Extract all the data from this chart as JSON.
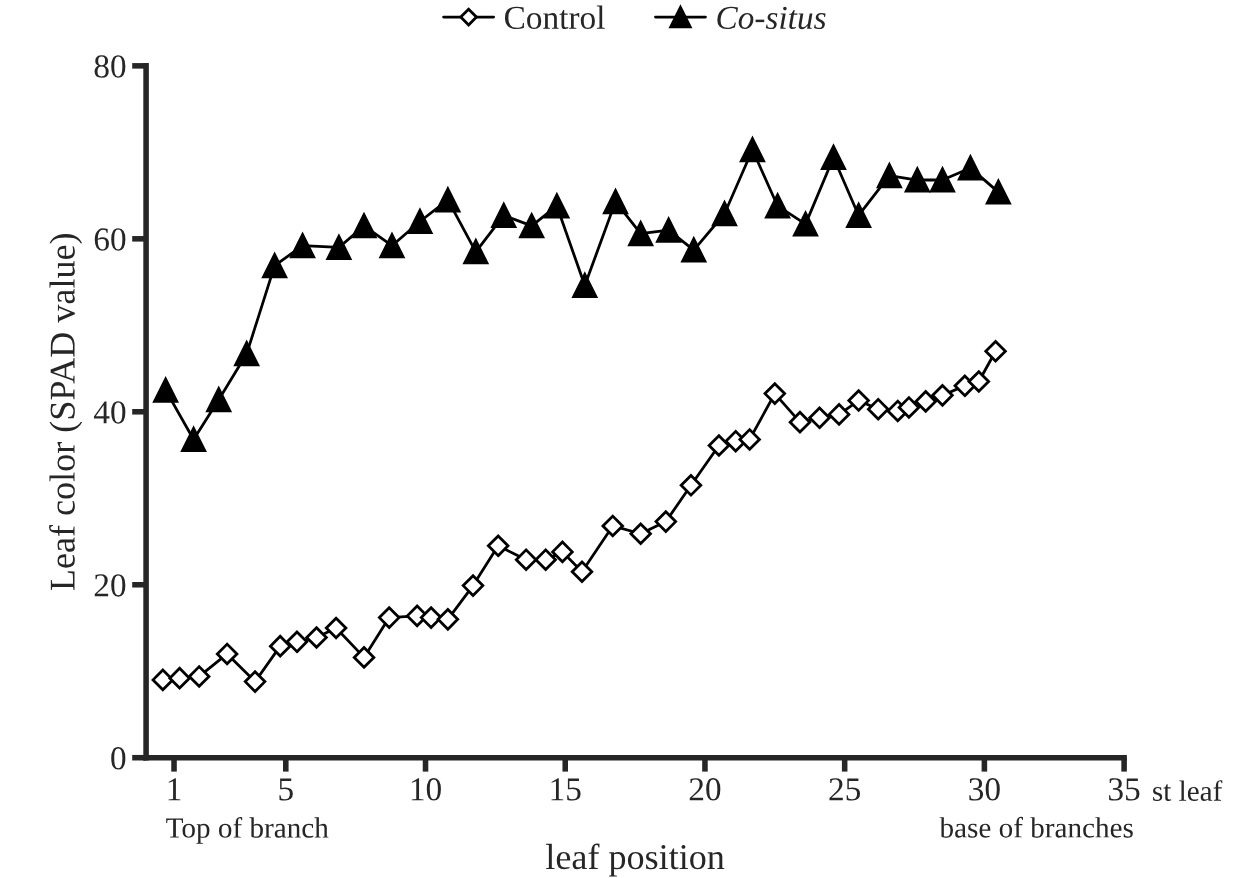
{
  "chart_data": {
    "type": "line",
    "xlabel": "leaf position",
    "ylabel": "Leaf color (SPAD value)",
    "xlim": [
      0,
      35
    ],
    "xticks": [
      1,
      5,
      10,
      15,
      20,
      25,
      30,
      35
    ],
    "ylim": [
      0,
      80
    ],
    "yticks": [
      0,
      20,
      40,
      60,
      80
    ],
    "legend": "top",
    "grid": false,
    "annotations": [
      "st leaf",
      "Top of branch",
      "base of branches"
    ],
    "series": [
      {
        "name": "Control",
        "color": "#000000",
        "marker": "diamond",
        "x": [
          0.6,
          1.2,
          1.9,
          2.9,
          3.9,
          4.8,
          5.4,
          6.1,
          6.8,
          7.8,
          8.7,
          9.7,
          10.2,
          10.8,
          11.7,
          12.6,
          13.6,
          14.3,
          14.9,
          15.6,
          16.7,
          17.7,
          18.6,
          19.5,
          20.5,
          21.1,
          21.6,
          22.5,
          23.4,
          24.1,
          24.8,
          25.5,
          26.2,
          26.9,
          27.3,
          27.9,
          28.5,
          29.3,
          29.8,
          30.4
        ],
        "values": [
          9,
          9.2,
          9.4,
          12,
          8.8,
          12.9,
          13.4,
          13.9,
          15,
          11.6,
          16.2,
          16.4,
          16.2,
          16,
          19.9,
          24.5,
          22.9,
          22.9,
          23.8,
          21.5,
          26.8,
          25.9,
          27.3,
          31.5,
          36.1,
          36.6,
          36.8,
          42.1,
          38.8,
          39.3,
          39.7,
          41.3,
          40.3,
          40.1,
          40.5,
          41.2,
          41.9,
          43,
          43.5,
          47
        ]
      },
      {
        "name": "Co-situs",
        "color": "#000000",
        "marker": "triangle",
        "x": [
          0.7,
          1.7,
          2.6,
          3.6,
          4.6,
          5.6,
          6.9,
          7.8,
          8.8,
          9.8,
          10.8,
          11.8,
          12.8,
          13.8,
          14.7,
          15.7,
          16.8,
          17.7,
          18.7,
          19.6,
          20.7,
          21.7,
          22.6,
          23.6,
          24.6,
          25.5,
          26.6,
          27.6,
          28.5,
          29.5,
          30.5
        ],
        "values": [
          42.5,
          36.8,
          41.4,
          46.7,
          56.9,
          59.2,
          59,
          61.5,
          59.2,
          62,
          64.5,
          58.5,
          62.7,
          61.5,
          63.8,
          54.6,
          64.3,
          60.6,
          61,
          58.7,
          62.9,
          70.3,
          63.8,
          61.7,
          69.4,
          62.7,
          67.3,
          66.8,
          66.8,
          68.2,
          65.4
        ]
      }
    ]
  }
}
